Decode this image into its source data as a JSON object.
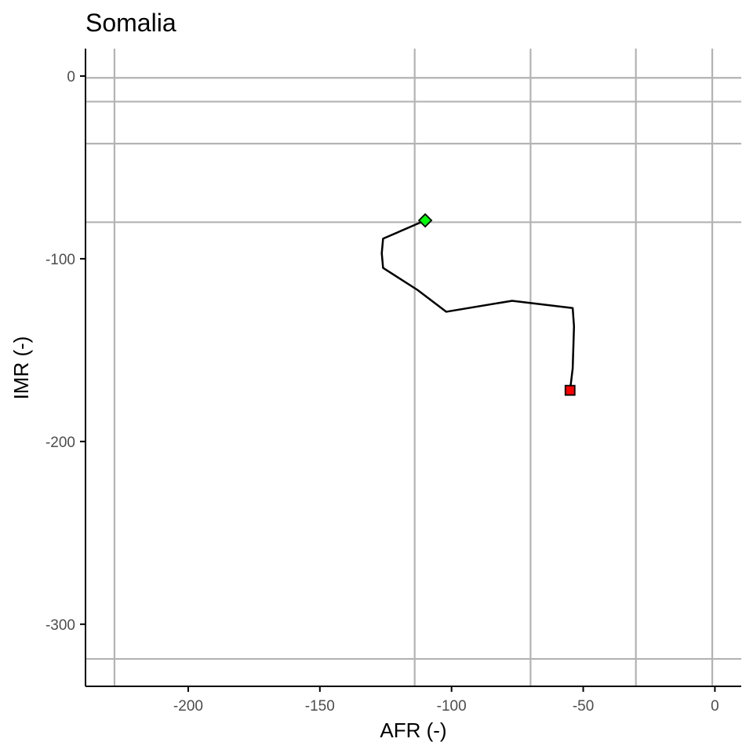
{
  "chart_data": {
    "type": "line",
    "title": "Somalia",
    "xlabel": "AFR (-)",
    "ylabel": "IMR (-)",
    "xlim": [
      -239,
      10
    ],
    "ylim": [
      -334,
      15
    ],
    "x_ticks": [
      {
        "value": -200,
        "label": "-200"
      },
      {
        "value": -150,
        "label": "-150"
      },
      {
        "value": -100,
        "label": "-100"
      },
      {
        "value": -50,
        "label": "-50"
      },
      {
        "value": 0,
        "label": "0"
      }
    ],
    "y_ticks": [
      {
        "value": 0,
        "label": "0"
      },
      {
        "value": -100,
        "label": "-100"
      },
      {
        "value": -200,
        "label": "-200"
      },
      {
        "value": -300,
        "label": "-300"
      }
    ],
    "reference_lines": {
      "vertical": [
        -228,
        -114,
        -70,
        -30,
        -1
      ],
      "horizontal": [
        -1,
        -14,
        -37,
        -80,
        -319
      ]
    },
    "grid": false,
    "series": [
      {
        "x": [
          -110,
          -126,
          -126.5,
          -126,
          -113,
          -102,
          -77,
          -54,
          -53.5,
          -54,
          -55
        ],
        "y": [
          -79,
          -89,
          -97,
          -105,
          -117,
          -129,
          -123,
          -127,
          -137,
          -160,
          -172
        ],
        "color": "#000000"
      }
    ],
    "markers": [
      {
        "shape": "diamond",
        "x": -110,
        "y": -79,
        "color": "#00ff00"
      },
      {
        "shape": "square",
        "x": -55,
        "y": -172,
        "color": "#ff0000"
      }
    ]
  }
}
